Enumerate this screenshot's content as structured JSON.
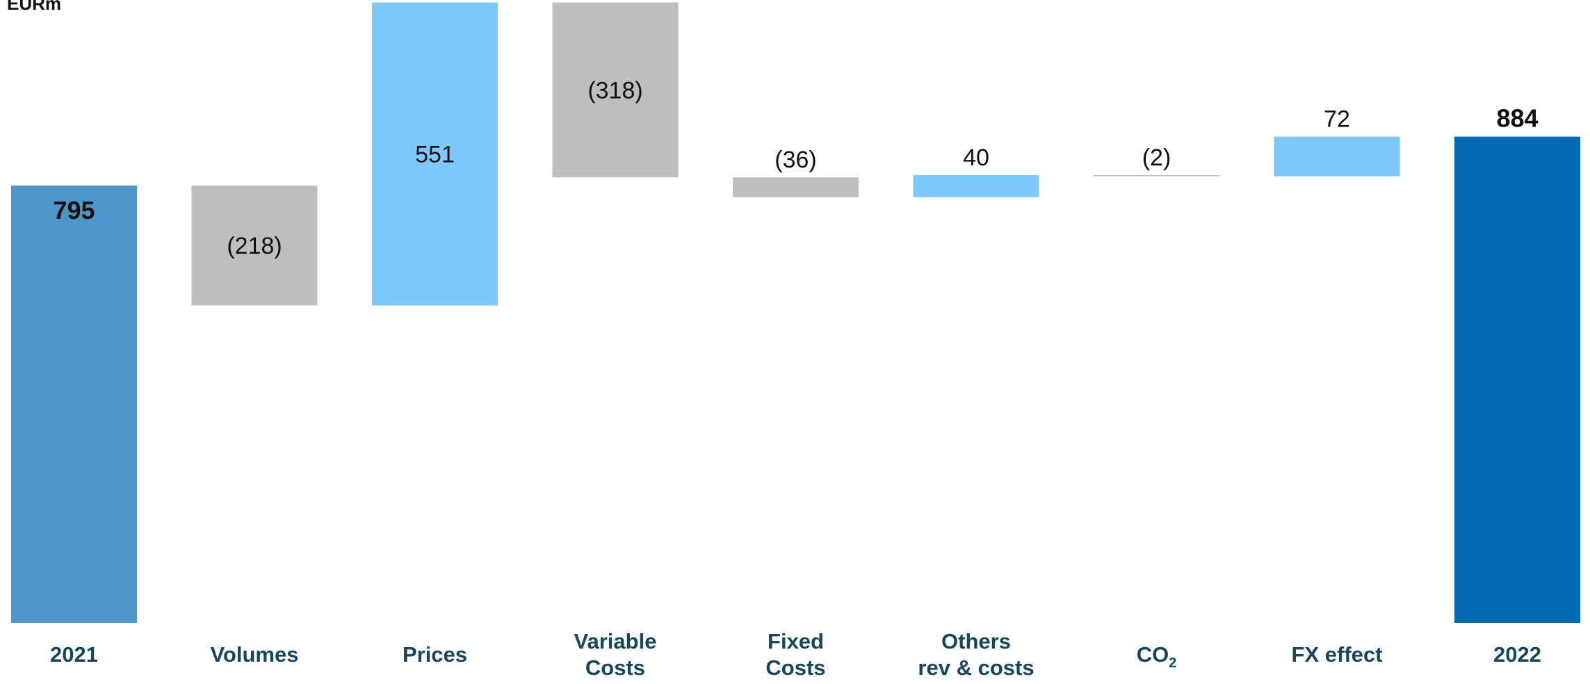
{
  "chart_data": {
    "type": "waterfall",
    "unit": "EURm",
    "categories": [
      "2021",
      "Volumes",
      "Prices",
      "Variable Costs",
      "Fixed Costs",
      "Others rev & costs",
      "CO2",
      "FX effect",
      "2022"
    ],
    "category_lines": [
      [
        "2021"
      ],
      [
        "Volumes"
      ],
      [
        "Prices"
      ],
      [
        "Variable",
        "Costs"
      ],
      [
        "Fixed",
        "Costs"
      ],
      [
        "Others",
        "rev & costs"
      ],
      [
        "CO2"
      ],
      [
        "FX effect"
      ],
      [
        "2022"
      ]
    ],
    "values": [
      795,
      -218,
      551,
      -318,
      -36,
      40,
      -2,
      72,
      884
    ],
    "value_labels": [
      "795",
      "(218)",
      "551",
      "(318)",
      "(36)",
      "40",
      "(2)",
      "72",
      "884"
    ],
    "kinds": [
      "total",
      "delta",
      "delta",
      "delta",
      "delta",
      "delta",
      "delta",
      "delta",
      "total"
    ],
    "colors": {
      "total_start": "#4D97CB",
      "total_end": "#046AB6",
      "increase": "#7DC8FC",
      "decrease": "#BEBEBE",
      "category_text": "#17475A",
      "value_text": "#111111"
    },
    "ylim": [
      0,
      1128
    ]
  }
}
